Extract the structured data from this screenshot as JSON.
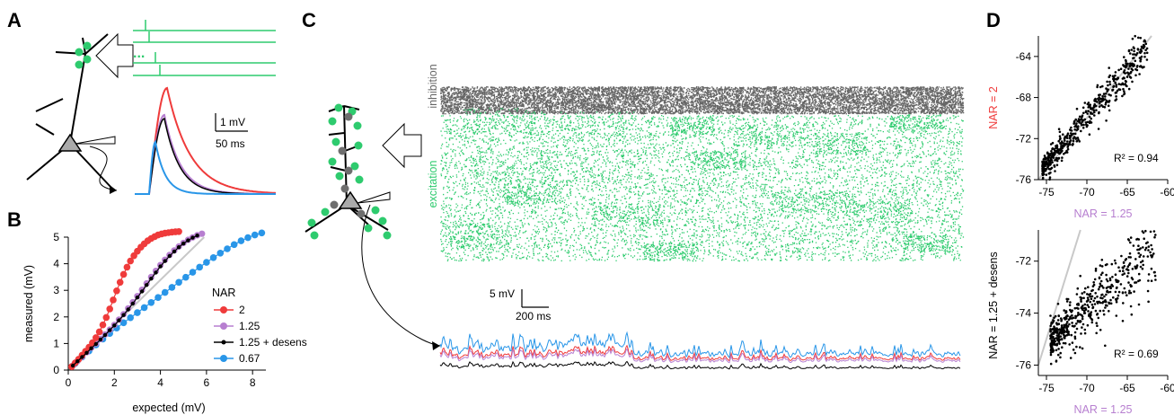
{
  "panel_labels": {
    "a": "A",
    "b": "B",
    "c": "C",
    "d": "D"
  },
  "colors": {
    "nar_2": "#ef3b3b",
    "nar_1_25": "#b77fd0",
    "nar_1_25_desens": "#000000",
    "nar_0_67": "#2996e8",
    "excitation": "#2ecb6e",
    "inhibition": "#666666",
    "identity_line": "#c8c8c8"
  },
  "panel_a": {
    "scale_bar_y": "1 mV",
    "scale_bar_x": "50 ms",
    "ellipsis": "..."
  },
  "panel_b": {
    "xlabel": "expected (mV)",
    "ylabel": "measured (mV)",
    "x_ticks": [
      "0",
      "2",
      "4",
      "6",
      "8"
    ],
    "y_ticks": [
      "0",
      "1",
      "2",
      "3",
      "4",
      "5"
    ],
    "legend_title": "NAR",
    "legend": [
      "2",
      "1.25",
      "1.25 + desens",
      "0.67"
    ]
  },
  "panel_c": {
    "inhibition_label": "inhibition",
    "excitation_label": "excitation",
    "scale_bar_y": "5 mV",
    "scale_bar_x": "200 ms"
  },
  "panel_d": {
    "top": {
      "ylabel": "NAR = 2",
      "xlabel": "NAR = 1.25",
      "r2": "R² = 0.94",
      "x_ticks": [
        "-75",
        "-70",
        "-65",
        "-60"
      ],
      "y_ticks": [
        "-64",
        "-68",
        "-72",
        "-76"
      ]
    },
    "bottom": {
      "ylabel": "NAR = 1.25 + desens",
      "xlabel": "NAR = 1.25",
      "r2": "R² = 0.69",
      "x_ticks": [
        "-75",
        "-70",
        "-65",
        "-60"
      ],
      "y_ticks": [
        "-72",
        "-74",
        "-76"
      ]
    }
  },
  "chart_data": [
    {
      "panel": "B",
      "type": "line",
      "xlabel": "expected (mV)",
      "ylabel": "measured (mV)",
      "xlim": [
        0,
        8.5
      ],
      "ylim": [
        0,
        5
      ],
      "legend_title": "NAR",
      "legend_placement": "right",
      "identity_line": true,
      "series": [
        {
          "name": "2",
          "x": [
            0.15,
            0.3,
            0.45,
            0.6,
            0.75,
            0.9,
            1.05,
            1.2,
            1.35,
            1.5,
            1.65,
            1.8,
            1.95,
            2.1,
            2.25,
            2.4,
            2.55,
            2.7,
            2.85,
            3.0,
            3.15,
            3.3,
            3.45,
            3.6,
            3.75,
            3.9,
            4.05,
            4.2,
            4.35,
            4.5,
            4.65,
            4.8
          ],
          "y": [
            0.13,
            0.27,
            0.41,
            0.56,
            0.71,
            0.86,
            1.03,
            1.22,
            1.44,
            1.7,
            1.98,
            2.3,
            2.64,
            2.98,
            3.3,
            3.6,
            3.87,
            4.1,
            4.3,
            4.47,
            4.62,
            4.75,
            4.86,
            4.95,
            5.02,
            5.08,
            5.12,
            5.15,
            5.17,
            5.19,
            5.2,
            5.21
          ]
        },
        {
          "name": "1.25",
          "x": [
            0.2,
            0.4,
            0.6,
            0.8,
            1.0,
            1.2,
            1.4,
            1.6,
            1.8,
            2.0,
            2.2,
            2.4,
            2.6,
            2.8,
            3.0,
            3.2,
            3.4,
            3.6,
            3.8,
            4.0,
            4.2,
            4.4,
            4.6,
            4.8,
            5.0,
            5.2,
            5.4,
            5.6,
            5.8
          ],
          "y": [
            0.17,
            0.34,
            0.5,
            0.67,
            0.84,
            1.0,
            1.17,
            1.34,
            1.52,
            1.7,
            1.9,
            2.1,
            2.32,
            2.55,
            2.78,
            3.02,
            3.26,
            3.5,
            3.73,
            3.95,
            4.15,
            4.33,
            4.5,
            4.65,
            4.78,
            4.9,
            4.99,
            5.07,
            5.13
          ]
        },
        {
          "name": "1.25 + desens",
          "x": [
            0.2,
            0.4,
            0.6,
            0.8,
            1.0,
            1.2,
            1.4,
            1.6,
            1.8,
            2.0,
            2.2,
            2.4,
            2.6,
            2.8,
            3.0,
            3.2,
            3.4,
            3.6,
            3.8,
            4.0,
            4.2,
            4.4,
            4.6,
            4.8,
            5.0,
            5.2,
            5.4,
            5.6
          ],
          "y": [
            0.17,
            0.33,
            0.49,
            0.65,
            0.82,
            0.98,
            1.15,
            1.32,
            1.5,
            1.68,
            1.87,
            2.07,
            2.28,
            2.5,
            2.73,
            2.96,
            3.2,
            3.44,
            3.67,
            3.9,
            4.1,
            4.29,
            4.46,
            4.62,
            4.76,
            4.88,
            4.98,
            5.06
          ]
        },
        {
          "name": "0.67",
          "x": [
            0.3,
            0.6,
            0.9,
            1.2,
            1.5,
            1.8,
            2.1,
            2.4,
            2.7,
            3.0,
            3.3,
            3.6,
            3.9,
            4.2,
            4.5,
            4.8,
            5.1,
            5.4,
            5.7,
            6.0,
            6.3,
            6.6,
            6.9,
            7.2,
            7.5,
            7.8,
            8.1,
            8.4
          ],
          "y": [
            0.25,
            0.49,
            0.72,
            0.95,
            1.17,
            1.38,
            1.58,
            1.78,
            1.97,
            2.16,
            2.35,
            2.54,
            2.73,
            2.92,
            3.11,
            3.3,
            3.49,
            3.68,
            3.87,
            4.05,
            4.23,
            4.4,
            4.56,
            4.72,
            4.86,
            4.98,
            5.08,
            5.16
          ]
        }
      ]
    },
    {
      "panel": "D-top",
      "type": "scatter",
      "xlabel": "NAR = 1.25",
      "ylabel": "NAR = 2",
      "xlim": [
        -76,
        -60
      ],
      "ylim": [
        -76,
        -62
      ],
      "r2": 0.94,
      "identity_line": true,
      "trend": {
        "x_range": [
          -75.5,
          -62.5
        ],
        "slope": 0.92,
        "intercept": -5.5,
        "spread": 0.9
      }
    },
    {
      "panel": "D-bottom",
      "type": "scatter",
      "xlabel": "NAR = 1.25",
      "ylabel": "NAR = 1.25 + desens",
      "xlim": [
        -76,
        -60
      ],
      "ylim": [
        -76.4,
        -70.8
      ],
      "r2": 0.69,
      "identity_line": true,
      "trend": {
        "x_range": [
          -74.5,
          -61.5
        ],
        "slope": 0.28,
        "intercept": -54.2,
        "spread": 0.6
      }
    }
  ]
}
